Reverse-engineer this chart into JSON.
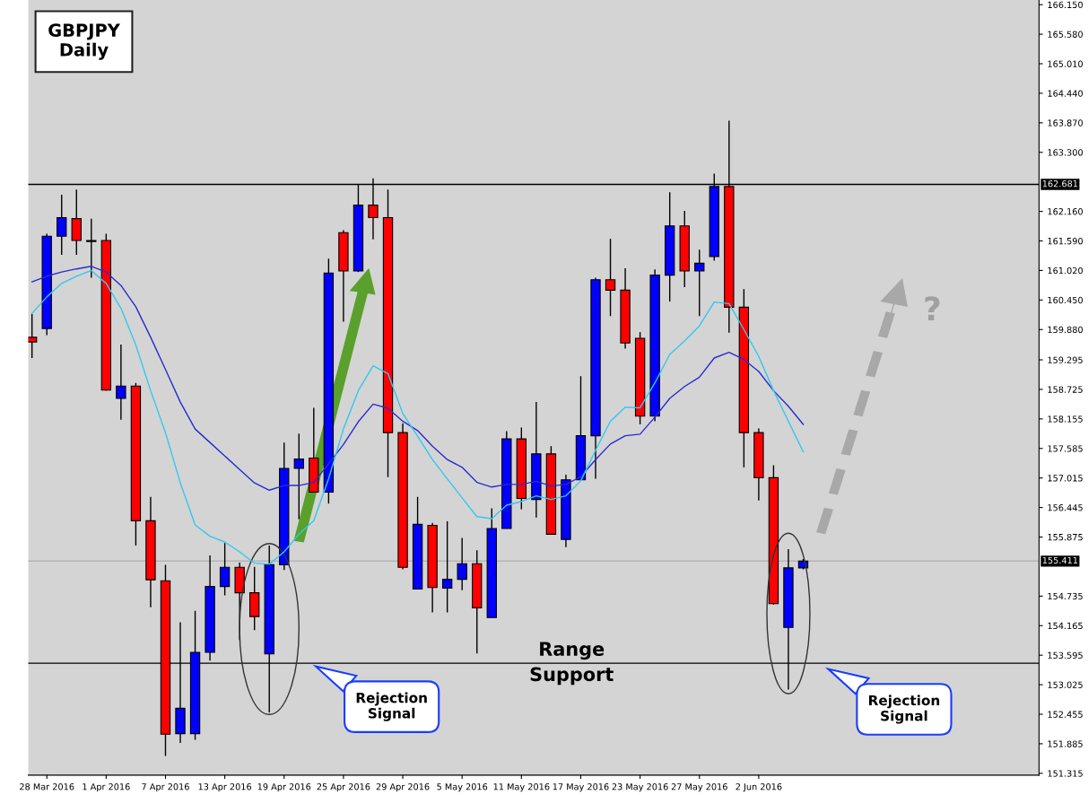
{
  "chart_data": {
    "type": "candlestick",
    "title": "GBPJPY\nDaily",
    "categories": [
      null,
      "28 Mar 2016",
      null,
      null,
      null,
      "1 Apr 2016",
      null,
      null,
      null,
      "7 Apr 2016",
      null,
      null,
      null,
      "13 Apr 2016",
      null,
      null,
      null,
      "19 Apr 2016",
      null,
      null,
      null,
      "25 Apr 2016",
      null,
      null,
      null,
      "29 Apr 2016",
      null,
      null,
      null,
      "5 May 2016",
      null,
      null,
      null,
      "11 May 2016",
      null,
      null,
      null,
      "17 May 2016",
      null,
      null,
      null,
      "23 May 2016",
      null,
      null,
      null,
      "27 May 2016",
      null,
      null,
      null,
      "2 Jun 2016",
      null,
      null,
      null
    ],
    "ohlc": [
      [
        159.73,
        160.18,
        159.33,
        159.64
      ],
      [
        159.9,
        161.73,
        159.77,
        161.68
      ],
      [
        161.68,
        162.48,
        161.32,
        162.04
      ],
      [
        162.02,
        162.58,
        161.32,
        161.6
      ],
      [
        161.6,
        162.02,
        160.88,
        161.58
      ],
      [
        161.6,
        161.73,
        158.7,
        158.71
      ],
      [
        158.55,
        159.59,
        158.14,
        158.79
      ],
      [
        158.79,
        158.85,
        155.71,
        156.19
      ],
      [
        156.19,
        156.65,
        154.52,
        155.05
      ],
      [
        155.03,
        155.34,
        151.65,
        152.07
      ],
      [
        152.08,
        154.23,
        151.9,
        152.57
      ],
      [
        152.08,
        154.45,
        151.96,
        153.65
      ],
      [
        153.65,
        155.52,
        153.49,
        154.92
      ],
      [
        154.92,
        155.76,
        154.75,
        155.29
      ],
      [
        155.29,
        155.38,
        153.89,
        154.8
      ],
      [
        154.8,
        155.3,
        154.08,
        154.34
      ],
      [
        153.62,
        155.71,
        152.49,
        155.34
      ],
      [
        155.34,
        157.7,
        155.24,
        157.2
      ],
      [
        157.2,
        157.87,
        156.22,
        157.38
      ],
      [
        157.4,
        158.37,
        156.74,
        156.74
      ],
      [
        156.74,
        161.25,
        156.52,
        160.97
      ],
      [
        161.75,
        161.8,
        160.03,
        161.01
      ],
      [
        161.01,
        162.67,
        160.99,
        162.28
      ],
      [
        162.28,
        162.8,
        161.62,
        162.04
      ],
      [
        162.04,
        162.58,
        157.03,
        157.89
      ],
      [
        157.89,
        158.07,
        155.25,
        155.29
      ],
      [
        154.87,
        156.65,
        154.87,
        156.12
      ],
      [
        156.1,
        156.15,
        154.42,
        154.9
      ],
      [
        154.89,
        156.18,
        154.42,
        155.06
      ],
      [
        155.06,
        155.86,
        154.85,
        155.36
      ],
      [
        155.36,
        155.62,
        153.63,
        154.51
      ],
      [
        154.32,
        156.43,
        154.32,
        156.04
      ],
      [
        156.04,
        157.92,
        156.04,
        157.77
      ],
      [
        157.77,
        157.99,
        156.41,
        156.62
      ],
      [
        156.6,
        158.48,
        156.25,
        157.48
      ],
      [
        157.48,
        157.63,
        155.93,
        155.93
      ],
      [
        155.83,
        157.08,
        155.68,
        156.98
      ],
      [
        156.98,
        158.98,
        156.98,
        157.83
      ],
      [
        157.83,
        160.88,
        157.0,
        160.84
      ],
      [
        160.84,
        161.63,
        160.14,
        160.64
      ],
      [
        160.64,
        161.06,
        159.51,
        159.62
      ],
      [
        159.71,
        159.83,
        158.05,
        158.21
      ],
      [
        158.21,
        161.04,
        158.11,
        160.93
      ],
      [
        160.93,
        162.53,
        160.42,
        161.88
      ],
      [
        161.88,
        162.17,
        160.7,
        161.01
      ],
      [
        161.01,
        161.42,
        160.14,
        161.16
      ],
      [
        161.29,
        162.89,
        161.21,
        162.64
      ],
      [
        162.64,
        163.91,
        159.82,
        160.31
      ],
      [
        160.31,
        160.66,
        157.22,
        157.89
      ],
      [
        157.89,
        157.97,
        156.58,
        157.02
      ],
      [
        157.02,
        157.26,
        154.57,
        154.59
      ],
      [
        154.13,
        155.64,
        152.93,
        155.28
      ],
      [
        155.28,
        155.45,
        155.25,
        155.41
      ]
    ],
    "colors": [
      "#ff0000",
      "#0000ff",
      "#0000ff",
      "#ff0000",
      "#ff0000",
      "#ff0000",
      "#0000ff",
      "#ff0000",
      "#ff0000",
      "#ff0000",
      "#0000ff",
      "#0000ff",
      "#0000ff",
      "#0000ff",
      "#ff0000",
      "#ff0000",
      "#0000ff",
      "#0000ff",
      "#0000ff",
      "#ff0000",
      "#0000ff",
      "#ff0000",
      "#0000ff",
      "#ff0000",
      "#ff0000",
      "#ff0000",
      "#0000ff",
      "#ff0000",
      "#0000ff",
      "#0000ff",
      "#ff0000",
      "#0000ff",
      "#0000ff",
      "#ff0000",
      "#0000ff",
      "#ff0000",
      "#0000ff",
      "#0000ff",
      "#0000ff",
      "#ff0000",
      "#ff0000",
      "#ff0000",
      "#0000ff",
      "#0000ff",
      "#ff0000",
      "#0000ff",
      "#0000ff",
      "#ff0000",
      "#ff0000",
      "#ff0000",
      "#ff0000",
      "#0000ff",
      "#0000ff"
    ],
    "series": [
      {
        "type": "line",
        "color": "#2a2ad0",
        "values": [
          160.8,
          160.91,
          160.99,
          161.05,
          161.1,
          160.99,
          160.73,
          160.32,
          159.73,
          159.11,
          158.48,
          157.96,
          157.7,
          157.44,
          157.18,
          156.92,
          156.78,
          156.87,
          156.87,
          156.93,
          157.29,
          157.66,
          158.1,
          158.44,
          158.36,
          158.11,
          157.93,
          157.63,
          157.37,
          157.22,
          156.93,
          156.84,
          156.89,
          156.89,
          156.95,
          156.86,
          156.89,
          157.04,
          157.37,
          157.67,
          157.83,
          157.86,
          158.19,
          158.55,
          158.78,
          158.96,
          159.33,
          159.44,
          159.3,
          159.07,
          158.7,
          158.4,
          158.05
        ]
      },
      {
        "type": "line",
        "color": "#30c8f0",
        "values": [
          160.19,
          160.51,
          160.77,
          160.91,
          161.02,
          160.77,
          160.29,
          159.58,
          158.7,
          157.89,
          156.92,
          156.11,
          155.89,
          155.78,
          155.59,
          155.37,
          155.35,
          155.59,
          155.93,
          156.19,
          157.0,
          157.96,
          158.7,
          159.18,
          159.03,
          158.26,
          157.82,
          157.37,
          157.0,
          156.63,
          156.27,
          156.23,
          156.49,
          156.56,
          156.67,
          156.6,
          156.67,
          156.96,
          157.55,
          158.11,
          158.38,
          158.37,
          158.85,
          159.4,
          159.66,
          159.95,
          160.41,
          160.38,
          159.88,
          159.36,
          158.7,
          158.11,
          157.52
        ]
      }
    ],
    "ylim": [
      151.28,
      166.24
    ],
    "yticks": [
      {
        "value": 166.15,
        "label": "166.150"
      },
      {
        "value": 165.58,
        "label": "165.580"
      },
      {
        "value": 165.01,
        "label": "165.010"
      },
      {
        "value": 164.44,
        "label": "164.440"
      },
      {
        "value": 163.87,
        "label": "163.870"
      },
      {
        "value": 163.3,
        "label": "163.300"
      },
      {
        "value": 162.16,
        "label": "162.160"
      },
      {
        "value": 161.59,
        "label": "161.590"
      },
      {
        "value": 161.02,
        "label": "161.020"
      },
      {
        "value": 160.45,
        "label": "160.450"
      },
      {
        "value": 159.88,
        "label": "159.880"
      },
      {
        "value": 159.295,
        "label": "159.295"
      },
      {
        "value": 158.725,
        "label": "158.725"
      },
      {
        "value": 158.155,
        "label": "158.155"
      },
      {
        "value": 157.585,
        "label": "157.585"
      },
      {
        "value": 157.015,
        "label": "157.015"
      },
      {
        "value": 156.445,
        "label": "156.445"
      },
      {
        "value": 155.875,
        "label": "155.875"
      },
      {
        "value": 154.735,
        "label": "154.735"
      },
      {
        "value": 154.165,
        "label": "154.165"
      },
      {
        "value": 153.595,
        "label": "153.595"
      },
      {
        "value": 153.025,
        "label": "153.025"
      },
      {
        "value": 152.455,
        "label": "152.455"
      },
      {
        "value": 151.885,
        "label": "151.885"
      },
      {
        "value": 151.315,
        "label": "151.315"
      }
    ],
    "ref_lines": [
      {
        "axis": "y",
        "value": 162.681,
        "label": "162.681",
        "color": "#000000"
      },
      {
        "axis": "y",
        "value": 155.411,
        "label": "155.411",
        "color": "#b4b4b4"
      },
      {
        "axis": "y",
        "value": 153.44,
        "color": "#000000"
      }
    ],
    "annotations": [
      "Rejection\nSignal",
      "Rejection\nSignal",
      "?",
      {
        "text": "Range\nSupport",
        "y": 153.44
      }
    ],
    "grid": false,
    "legend": false
  }
}
